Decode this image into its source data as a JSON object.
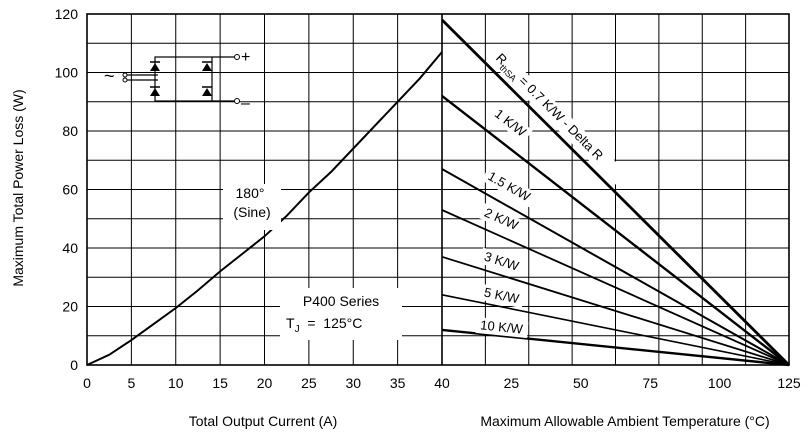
{
  "chart_data": {
    "type": "line",
    "ylabel": "Maximum Total Power Loss (W)",
    "ylim": [
      0,
      120
    ],
    "y_ticks": [
      "0",
      "20",
      "40",
      "60",
      "80",
      "100",
      "120"
    ],
    "grid": true,
    "left_panel": {
      "xlabel": "Total Output Current (A)",
      "xlim": [
        0,
        40
      ],
      "x_ticks": [
        "0",
        "5",
        "10",
        "15",
        "20",
        "25",
        "30",
        "35",
        "40"
      ],
      "series": [
        {
          "name": "180° (Sine)",
          "x": [
            0,
            2.5,
            5,
            7.5,
            10,
            12.5,
            15,
            17.5,
            20,
            22.5,
            25,
            27.5,
            30,
            32.5,
            35,
            37.5,
            40
          ],
          "y": [
            0,
            3.5,
            8.5,
            14,
            19.5,
            25.5,
            32,
            38,
            44,
            51,
            59,
            66,
            74,
            82,
            90,
            98,
            107
          ]
        }
      ],
      "label_line1": "180°",
      "label_line2": "(Sine)",
      "annotation_line1": "P400  Series",
      "annotation_tj": "T",
      "annotation_tj_sub": "J",
      "annotation_tj_value": "  =  125°C",
      "schematic_plus": "+",
      "schematic_minus": "–",
      "schematic_ac": "~"
    },
    "right_panel": {
      "xlabel": "Maximum Allowable Ambient Temperature (°C)",
      "xlim": [
        40,
        125
      ],
      "x_ticks": [
        "40",
        "25",
        "50",
        "75",
        "100",
        "125"
      ],
      "series": [
        {
          "name": "RthSA = 0.7 K/W - Delta R",
          "x": [
            40,
            125
          ],
          "y": [
            118,
            0
          ]
        },
        {
          "name": "1 K/W",
          "x": [
            40,
            125
          ],
          "y": [
            92,
            0
          ]
        },
        {
          "name": "1.5 K/W",
          "x": [
            40,
            125
          ],
          "y": [
            67,
            0
          ]
        },
        {
          "name": "2 K/W",
          "x": [
            40,
            125
          ],
          "y": [
            53,
            0
          ]
        },
        {
          "name": "3 K/W",
          "x": [
            40,
            125
          ],
          "y": [
            37,
            0
          ]
        },
        {
          "name": "5 K/W",
          "x": [
            40,
            125
          ],
          "y": [
            24,
            0
          ]
        },
        {
          "name": "10 K/W",
          "x": [
            40,
            125
          ],
          "y": [
            12,
            0
          ]
        }
      ],
      "rth_main_prefix": "R",
      "rth_main_sub": "thSA",
      "rth_main_rest": " = 0.7 K/W - Delta R",
      "labels": [
        "1 K/W",
        "1.5 K/W",
        "2 K/W",
        "3 K/W",
        "5 K/W",
        "10 K/W"
      ]
    }
  }
}
